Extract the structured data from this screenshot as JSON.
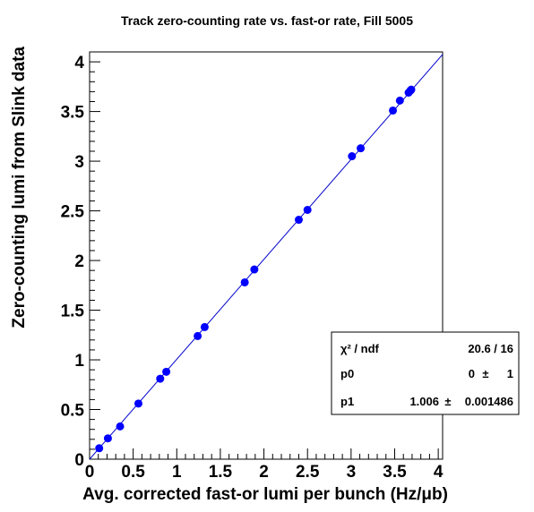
{
  "chart_data": {
    "type": "scatter",
    "title": "Track zero-counting rate vs. fast-or rate, Fill 5005",
    "xlabel": "Avg. corrected fast-or lumi per bunch (Hz/μb)",
    "ylabel": "Zero-counting lumi from Slink data",
    "xlim": [
      0,
      4.05
    ],
    "ylim": [
      0,
      4.1
    ],
    "x_ticks": [
      0,
      0.5,
      1,
      1.5,
      2,
      2.5,
      3,
      3.5,
      4
    ],
    "y_ticks": [
      0,
      0.5,
      1,
      1.5,
      2,
      2.5,
      3,
      3.5,
      4
    ],
    "x_tick_labels": [
      "0",
      "0.5",
      "1",
      "1.5",
      "2",
      "2.5",
      "3",
      "3.5",
      "4"
    ],
    "y_tick_labels": [
      "0",
      "0.5",
      "1",
      "1.5",
      "2",
      "2.5",
      "3",
      "3.5",
      "4"
    ],
    "grid": false,
    "colors": {
      "points": "#0000ff",
      "fit": "#0000cc",
      "axes": "#000000"
    },
    "series": [
      {
        "x": [
          0.11,
          0.21,
          0.35,
          0.56,
          0.81,
          0.88,
          1.24,
          1.32,
          1.78,
          1.89,
          2.4,
          2.5,
          3.01,
          3.11,
          3.48,
          3.56,
          3.66,
          3.68,
          3.69
        ],
        "y": [
          0.11,
          0.21,
          0.33,
          0.56,
          0.81,
          0.88,
          1.24,
          1.33,
          1.78,
          1.91,
          2.41,
          2.51,
          3.05,
          3.13,
          3.51,
          3.61,
          3.69,
          3.71,
          3.72
        ]
      }
    ],
    "fit": {
      "intercept": 0,
      "slope": 1.006
    },
    "stats_box": {
      "position": "bottom-right",
      "rows": [
        {
          "label": "χ² / ndf",
          "value": "20.6 / 16"
        },
        {
          "label": "p0",
          "value": "0",
          "pm": "±",
          "err": "1"
        },
        {
          "label": "p1",
          "value": "1.006",
          "pm": "±",
          "err": "0.001486"
        }
      ]
    }
  }
}
